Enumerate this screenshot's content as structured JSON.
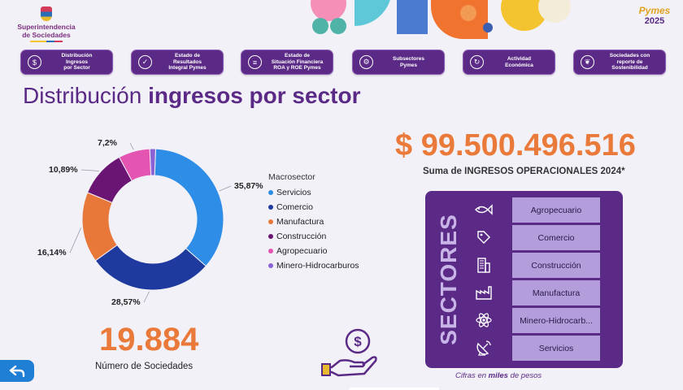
{
  "header": {
    "org_name": "Superintendencia\nde Sociedades",
    "brand_top": "Pymes",
    "brand_year": "2025"
  },
  "nav": [
    {
      "label": "Distribución\nIngresos\npor Sector",
      "icon": "dollar-hand-icon"
    },
    {
      "label": "Estado de\nResultados\nIntegral Pymes",
      "icon": "clipboard-icon"
    },
    {
      "label": "Estado de\nSituación Financiera\nROA y ROE Pymes",
      "icon": "report-icon"
    },
    {
      "label": "Subsectores\nPymes",
      "icon": "gear-icon"
    },
    {
      "label": "Actividad\nEconómica",
      "icon": "money-cycle-icon"
    },
    {
      "label": "Sociedades con\nreporte de\nSostenibilidad",
      "icon": "leaf-hand-icon"
    }
  ],
  "title": {
    "normal": "Distribución ",
    "bold": "ingresos por sector"
  },
  "chart_data": {
    "type": "pie",
    "donut": true,
    "legend_title": "Macrosector",
    "legend_position": "right",
    "series": [
      {
        "name": "Servicios",
        "value": 35.87,
        "label": "35,87%",
        "color": "#2e8de6"
      },
      {
        "name": "Comercio",
        "value": 28.57,
        "label": "28,57%",
        "color": "#1f3a9e"
      },
      {
        "name": "Manufactura",
        "value": 16.14,
        "label": "16,14%",
        "color": "#e8773a"
      },
      {
        "name": "Construcción",
        "value": 10.89,
        "label": "10,89%",
        "color": "#6a1474"
      },
      {
        "name": "Agropecuario",
        "value": 7.2,
        "label": "7,2%",
        "color": "#e455b2"
      },
      {
        "name": "Minero-Hidrocarburos",
        "value": 1.33,
        "label": "",
        "color": "#8a62d6"
      }
    ]
  },
  "stats": {
    "amount": "$ 99.500.496.516",
    "amount_caption": "Suma de INGRESOS OPERACIONALES 2024*",
    "companies": "19.884",
    "companies_caption": "Número de Sociedades"
  },
  "sectors": {
    "title": "SECTORES",
    "items": [
      {
        "label": "Agropecuario",
        "icon": "fish-icon"
      },
      {
        "label": "Comercio",
        "icon": "price-tag-icon"
      },
      {
        "label": "Construcción",
        "icon": "building-icon"
      },
      {
        "label": "Manufactura",
        "icon": "factory-icon"
      },
      {
        "label": "Minero-Hidrocarb...",
        "icon": "atom-icon"
      },
      {
        "label": "Servicios",
        "icon": "satellite-dish-icon"
      }
    ],
    "footnote_pre": "Cifras en ",
    "footnote_bold": "miles",
    "footnote_post": " de pesos"
  },
  "colors": {
    "primary": "#5b2a86",
    "accent": "#ea7a3a",
    "back_button": "#1f7fd4"
  }
}
